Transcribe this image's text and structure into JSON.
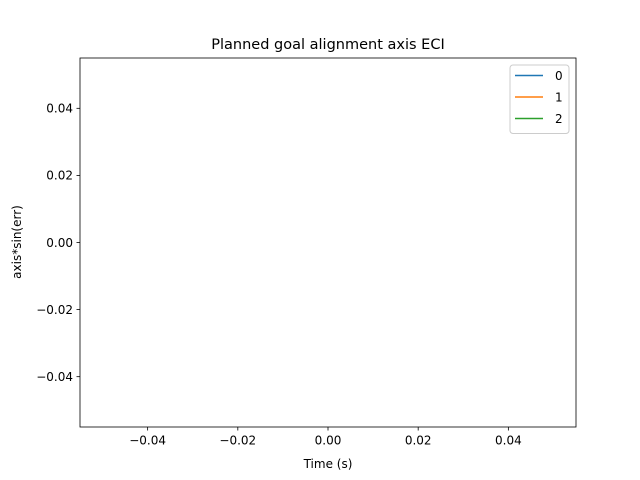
{
  "chart_data": {
    "type": "line",
    "title": "Planned goal alignment axis ECI",
    "xlabel": "Time (s)",
    "ylabel": "axis*sin(err)",
    "xlim": [
      -0.055,
      0.055
    ],
    "ylim": [
      -0.055,
      0.055
    ],
    "xticks": [
      -0.04,
      -0.02,
      0.0,
      0.02,
      0.04
    ],
    "yticks": [
      -0.04,
      -0.02,
      0.0,
      0.02,
      0.04
    ],
    "xtick_labels": [
      "−0.04",
      "−0.02",
      "0.00",
      "0.02",
      "0.04"
    ],
    "ytick_labels": [
      "−0.04",
      "−0.02",
      "0.00",
      "0.02",
      "0.04"
    ],
    "grid": false,
    "legend_position": "top-right",
    "series": [
      {
        "name": "0",
        "color": "#1f77b4",
        "x": [],
        "y": []
      },
      {
        "name": "1",
        "color": "#ff7f0e",
        "x": [],
        "y": []
      },
      {
        "name": "2",
        "color": "#2ca02c",
        "x": [],
        "y": []
      }
    ]
  }
}
